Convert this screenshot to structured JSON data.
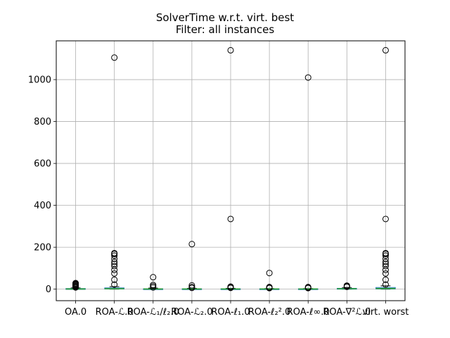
{
  "chart_data": {
    "type": "boxplot",
    "title": "SolverTime w.r.t. virt. best",
    "subtitle": "Filter: all instances",
    "xlabel": "",
    "ylabel": "",
    "ylim": [
      -55,
      1185
    ],
    "yticks": [
      0,
      200,
      400,
      600,
      800,
      1000
    ],
    "grid": true,
    "categories": [
      "OA.0",
      "ROA-ℒ.0",
      "ROA-ℒ₁/ℓ₂.0",
      "ROA-ℒ₂.0",
      "ROA-ℓ₁.0",
      "ROA-ℓ₂².0",
      "ROA-ℓ∞.0",
      "ROA-∇²ℒ.0",
      "virt. worst"
    ],
    "boxes": [
      {
        "q1": 0,
        "median": 1,
        "q3": 3,
        "whisker_low": 0,
        "whisker_high": 6,
        "outliers": [
          8,
          11,
          14,
          17,
          20,
          23,
          26,
          29
        ]
      },
      {
        "q1": 1,
        "median": 2,
        "q3": 6,
        "whisker_low": 0,
        "whisker_high": 12,
        "outliers": [
          22,
          45,
          75,
          92,
          110,
          120,
          130,
          145,
          160,
          168,
          172,
          1105
        ]
      },
      {
        "q1": 0,
        "median": 1,
        "q3": 2,
        "whisker_low": 0,
        "whisker_high": 5,
        "outliers": [
          8,
          14,
          20,
          57
        ]
      },
      {
        "q1": 0,
        "median": 1,
        "q3": 2,
        "whisker_low": 0,
        "whisker_high": 4,
        "outliers": [
          6,
          10,
          18,
          215
        ]
      },
      {
        "q1": 0,
        "median": 1,
        "q3": 2,
        "whisker_low": 0,
        "whisker_high": 4,
        "outliers": [
          6,
          9,
          12,
          335,
          1140
        ]
      },
      {
        "q1": 0,
        "median": 1,
        "q3": 2,
        "whisker_low": 0,
        "whisker_high": 3,
        "outliers": [
          5,
          7,
          10,
          77
        ]
      },
      {
        "q1": 0,
        "median": 1,
        "q3": 2,
        "whisker_low": 0,
        "whisker_high": 3,
        "outliers": [
          5,
          8,
          10,
          1010
        ]
      },
      {
        "q1": 1,
        "median": 2,
        "q3": 4,
        "whisker_low": 0,
        "whisker_high": 8,
        "outliers": [
          11,
          14,
          17
        ]
      },
      {
        "q1": 1,
        "median": 3,
        "q3": 8,
        "whisker_low": 0,
        "whisker_high": 16,
        "outliers": [
          22,
          45,
          75,
          92,
          110,
          120,
          130,
          145,
          160,
          168,
          172,
          335,
          1140
        ]
      }
    ],
    "colors": {
      "box": "#1f77b4",
      "median": "#2ca02c",
      "whisker": "#000000",
      "grid": "#b0b0b0",
      "outlier": "#000000"
    }
  }
}
